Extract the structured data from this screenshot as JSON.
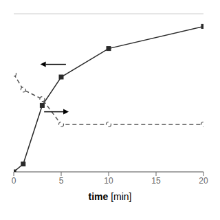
{
  "chart_data": {
    "type": "line",
    "xlabel": "time [min]",
    "x": [
      0,
      1,
      3,
      5,
      10,
      20
    ],
    "series": [
      {
        "color": "#2a2a2a",
        "marker": "square",
        "line_style": "solid",
        "values": [
          0.0,
          0.05,
          0.42,
          0.6,
          0.78,
          0.92
        ]
      },
      {
        "color": "#555555",
        "marker": "circle",
        "line_style": "dashed",
        "values": [
          0.62,
          0.52,
          0.46,
          0.3,
          0.3,
          0.3
        ]
      }
    ],
    "xlim": [
      0,
      20
    ],
    "ylim": [
      0,
      1.0
    ],
    "xticks": [
      0,
      5,
      10,
      15,
      20
    ],
    "yticks": [
      0.2,
      0.4,
      0.6,
      0.8,
      1.0
    ],
    "grid": true,
    "tick_labels": "x",
    "arrows": [
      {
        "tail": [
          5.5,
          0.68
        ],
        "head": [
          2.8,
          0.68
        ]
      },
      {
        "tail": [
          3.2,
          0.38
        ],
        "head": [
          5.8,
          0.38
        ]
      }
    ]
  }
}
